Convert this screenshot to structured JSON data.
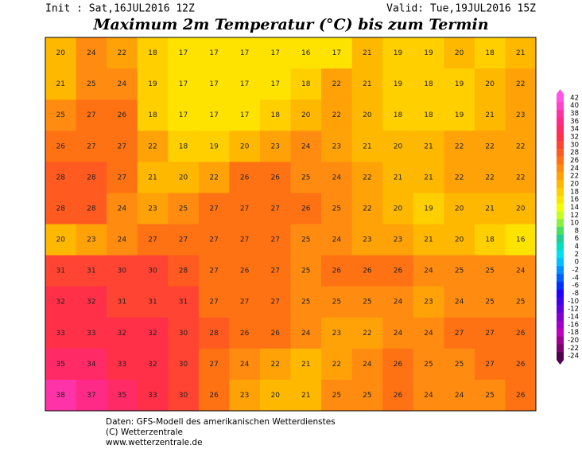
{
  "header": {
    "init": "Init : Sat,16JUL2016 12Z",
    "valid": "Valid: Tue,19JUL2016 15Z",
    "title": "Maximum 2m Temperatur (°C) bis zum Termin"
  },
  "colorbar": {
    "ticks": [
      42,
      40,
      38,
      36,
      34,
      32,
      30,
      28,
      26,
      24,
      22,
      20,
      18,
      16,
      14,
      12,
      10,
      8,
      6,
      4,
      2,
      0,
      -2,
      -4,
      -6,
      -8,
      -10,
      -12,
      -14,
      -16,
      -18,
      -20,
      -22,
      -24
    ],
    "colors": [
      "#ff55e6",
      "#ff44cc",
      "#ff33a8",
      "#ff2a88",
      "#ff2a66",
      "#ff3048",
      "#ff4433",
      "#ff5a20",
      "#ff7214",
      "#ff8c10",
      "#ffa208",
      "#ffb800",
      "#ffcf00",
      "#ffe300",
      "#f2ff00",
      "#c4ff20",
      "#88f040",
      "#48e060",
      "#20d090",
      "#00e0c0",
      "#00e0f0",
      "#00c0ff",
      "#0090ff",
      "#0060ff",
      "#0030ff",
      "#2000ff",
      "#4000f0",
      "#6000e0",
      "#8000d0",
      "#a000c8",
      "#c000c0",
      "#a00090",
      "#800070",
      "#500050"
    ]
  },
  "map": {
    "values": [
      [
        20,
        24,
        22,
        18,
        17,
        17,
        17,
        17,
        16,
        17,
        21,
        19,
        19,
        20,
        18,
        21
      ],
      [
        21,
        25,
        24,
        19,
        17,
        17,
        17,
        17,
        18,
        22,
        21,
        19,
        18,
        19,
        20,
        22
      ],
      [
        25,
        27,
        26,
        18,
        17,
        17,
        17,
        18,
        20,
        22,
        20,
        18,
        18,
        19,
        21,
        23
      ],
      [
        26,
        27,
        27,
        22,
        18,
        19,
        20,
        23,
        24,
        23,
        21,
        20,
        21,
        22,
        22,
        22
      ],
      [
        28,
        28,
        27,
        21,
        20,
        22,
        26,
        26,
        25,
        24,
        22,
        21,
        21,
        22,
        22,
        22
      ],
      [
        28,
        28,
        24,
        23,
        25,
        27,
        27,
        27,
        26,
        25,
        22,
        20,
        19,
        20,
        21,
        20
      ],
      [
        20,
        23,
        24,
        27,
        27,
        27,
        27,
        27,
        25,
        24,
        23,
        23,
        21,
        20,
        18,
        16
      ],
      [
        31,
        31,
        30,
        30,
        28,
        27,
        26,
        27,
        25,
        26,
        26,
        26,
        24,
        25,
        25,
        24
      ],
      [
        32,
        32,
        31,
        31,
        31,
        27,
        27,
        27,
        25,
        25,
        25,
        24,
        23,
        24,
        25,
        25
      ],
      [
        33,
        33,
        32,
        32,
        30,
        28,
        26,
        26,
        24,
        23,
        22,
        24,
        24,
        27,
        27,
        26
      ],
      [
        35,
        34,
        33,
        32,
        30,
        27,
        24,
        22,
        21,
        22,
        24,
        26,
        25,
        25,
        27,
        26
      ],
      [
        38,
        37,
        35,
        33,
        30,
        26,
        23,
        20,
        21,
        25,
        25,
        26,
        24,
        24,
        25,
        26
      ]
    ]
  },
  "footer": [
    "Daten: GFS-Modell des amerikanischen Wetterdienstes",
    "(C) Wetterzentrale",
    "www.wetterzentrale.de"
  ]
}
